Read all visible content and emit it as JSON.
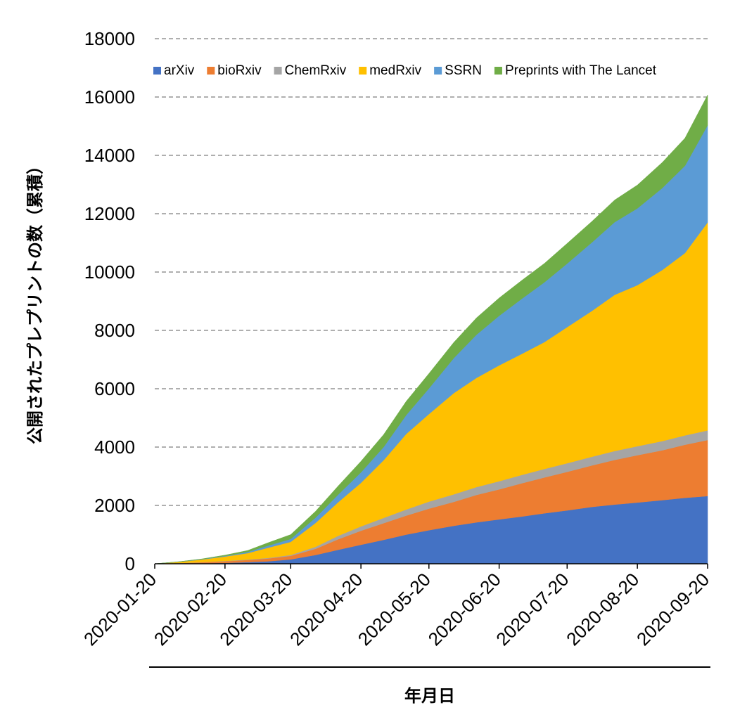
{
  "chart_data": {
    "type": "area",
    "stacked": true,
    "xlabel": "年月日",
    "ylabel": "公開されたプレプリントの数（累積）",
    "ylim": [
      0,
      18000
    ],
    "y_ticks": [
      0,
      2000,
      4000,
      6000,
      8000,
      10000,
      12000,
      14000,
      16000,
      18000
    ],
    "x_tick_labels": [
      "2020-01-20",
      "2020-02-20",
      "2020-03-20",
      "2020-04-20",
      "2020-05-20",
      "2020-06-20",
      "2020-07-20",
      "2020-08-20",
      "2020-09-20"
    ],
    "grid": true,
    "legend_position": "top",
    "x": [
      "2020-01-20",
      "2020-01-31",
      "2020-02-10",
      "2020-02-20",
      "2020-03-01",
      "2020-03-10",
      "2020-03-20",
      "2020-03-31",
      "2020-04-10",
      "2020-04-20",
      "2020-04-30",
      "2020-05-10",
      "2020-05-20",
      "2020-05-31",
      "2020-06-10",
      "2020-06-20",
      "2020-06-30",
      "2020-07-10",
      "2020-07-20",
      "2020-07-31",
      "2020-08-10",
      "2020-08-20",
      "2020-08-31",
      "2020-09-10",
      "2020-09-20"
    ],
    "series": [
      {
        "name": "arXiv",
        "color": "#4472C4",
        "values": [
          0,
          5,
          15,
          30,
          55,
          85,
          150,
          300,
          480,
          650,
          820,
          1000,
          1150,
          1300,
          1420,
          1520,
          1620,
          1730,
          1830,
          1950,
          2030,
          2100,
          2180,
          2260,
          2320
        ]
      },
      {
        "name": "bioRxiv",
        "color": "#ED7D31",
        "values": [
          0,
          15,
          35,
          55,
          75,
          95,
          120,
          210,
          360,
          480,
          570,
          650,
          740,
          820,
          940,
          1030,
          1140,
          1230,
          1320,
          1420,
          1530,
          1620,
          1710,
          1820,
          1920
        ]
      },
      {
        "name": "ChemRxiv",
        "color": "#A5A5A5",
        "values": [
          0,
          5,
          8,
          12,
          15,
          20,
          30,
          70,
          120,
          150,
          180,
          210,
          240,
          260,
          270,
          280,
          285,
          290,
          295,
          300,
          305,
          310,
          315,
          320,
          330
        ]
      },
      {
        "name": "medRxiv",
        "color": "#FFC000",
        "values": [
          0,
          40,
          90,
          150,
          220,
          350,
          450,
          820,
          1150,
          1490,
          1980,
          2590,
          3000,
          3470,
          3740,
          3970,
          4150,
          4350,
          4665,
          5000,
          5355,
          5520,
          5865,
          6250,
          7130
        ]
      },
      {
        "name": "SSRN",
        "color": "#5B9BD5",
        "values": [
          0,
          5,
          10,
          20,
          40,
          70,
          100,
          180,
          260,
          360,
          450,
          650,
          880,
          1200,
          1480,
          1700,
          1890,
          2050,
          2180,
          2350,
          2490,
          2630,
          2810,
          2990,
          3330
        ]
      },
      {
        "name": "Preprints with The Lancet",
        "color": "#70AD47",
        "values": [
          0,
          5,
          10,
          30,
          50,
          100,
          150,
          220,
          300,
          380,
          430,
          470,
          510,
          540,
          580,
          610,
          630,
          650,
          690,
          720,
          760,
          800,
          880,
          950,
          1040
        ]
      }
    ]
  }
}
